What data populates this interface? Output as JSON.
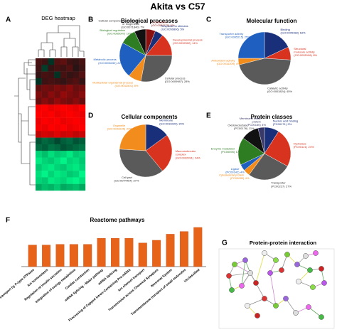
{
  "title": "Akita vs C57",
  "panels": [
    "A",
    "B",
    "C",
    "D",
    "E",
    "F",
    "G"
  ],
  "network": {
    "title": "Protein-protein interaction"
  },
  "chart_data": [
    {
      "type": "heatmap",
      "title": "DEG heatmap",
      "values": [
        [
          0.3,
          0.2,
          -0.1,
          0.4,
          0.5,
          0.2,
          0.1,
          0.3
        ],
        [
          0.2,
          -0.2,
          0.1,
          0.3,
          0.2,
          0.4,
          0.0,
          0.2
        ],
        [
          0.1,
          0.3,
          0.2,
          -0.1,
          0.3,
          0.1,
          0.2,
          0.4
        ],
        [
          -0.1,
          0.2,
          0.3,
          0.2,
          0.1,
          0.3,
          0.4,
          0.1
        ],
        [
          0.5,
          0.7,
          0.6,
          0.8,
          0.7,
          0.9,
          0.6,
          0.7
        ],
        [
          0.8,
          0.6,
          0.9,
          0.7,
          1.0,
          0.8,
          0.7,
          0.9
        ],
        [
          0.6,
          0.9,
          0.7,
          1.0,
          0.8,
          0.7,
          0.9,
          0.6
        ],
        [
          1.9,
          2.0,
          1.8,
          1.9,
          2.0,
          1.9,
          1.8,
          2.0
        ],
        [
          2.0,
          1.9,
          2.0,
          1.8,
          1.9,
          2.0,
          1.9,
          1.8
        ],
        [
          1.8,
          2.0,
          1.9,
          2.0,
          1.8,
          1.9,
          2.0,
          1.9
        ],
        [
          1.9,
          1.8,
          2.0,
          1.9,
          2.0,
          1.8,
          1.9,
          2.0
        ],
        [
          1.4,
          1.6,
          1.5,
          1.7,
          1.5,
          1.6,
          1.4,
          1.5
        ],
        [
          -0.4,
          -0.6,
          -0.5,
          -0.3,
          -0.5,
          -0.6,
          -0.4,
          -0.5
        ],
        [
          -0.6,
          -0.5,
          -0.7,
          -0.6,
          -0.4,
          -0.5,
          -0.6,
          -0.7
        ],
        [
          -1.6,
          -1.4,
          -1.7,
          -1.5,
          -1.6,
          -1.8,
          -1.5,
          -1.6
        ],
        [
          -1.8,
          -1.6,
          -1.5,
          -1.7,
          -1.9,
          -1.6,
          -1.7,
          -1.5
        ],
        [
          -1.5,
          -1.7,
          -1.8,
          -1.6,
          -1.5,
          -1.7,
          -1.8,
          -1.6
        ],
        [
          -1.7,
          -1.9,
          -1.6,
          -1.8,
          -1.7,
          -1.5,
          -1.6,
          -1.9
        ],
        [
          -1.6,
          -1.5,
          -1.8,
          -1.7,
          -1.6,
          -1.8,
          -1.9,
          -1.7
        ],
        [
          -1.2,
          -1.4,
          -1.3,
          -1.5,
          -1.2,
          -1.3,
          -1.4,
          -1.2
        ]
      ]
    },
    {
      "type": "pie",
      "title": "Biological processes",
      "labels": [
        [
          "Localization"
        ],
        [
          "Response to stimulus"
        ],
        [
          "Developmental process"
        ],
        [
          "Cellular process"
        ],
        [
          "Multicellular organismal process"
        ],
        [
          "Metabolic process"
        ],
        [
          "Biological regulation"
        ],
        [
          "Cellular component organization",
          "or biogenesis"
        ]
      ],
      "codes": [
        "(GO:0051179)",
        "(GO:0050896)",
        "(GO:0032502)",
        "(GO:0009987)",
        "(GO:0032501)",
        "(GO:0008152)",
        "(GO:0065007)",
        "(GO:0071840)"
      ],
      "values": [
        6,
        5,
        14,
        28,
        8,
        22,
        10,
        7
      ],
      "value_labels": [
        "6%",
        "5%",
        "14%",
        "28%",
        "8%",
        "22%",
        "10%",
        "7%"
      ],
      "colors": [
        "#8b1010",
        "#1a2f7a",
        "#d8331f",
        "#5a5a5a",
        "#f28c1c",
        "#1f5fbf",
        "#2e7d23",
        "#111111"
      ]
    },
    {
      "type": "pie",
      "title": "Molecular function",
      "labels": [
        [
          "Binding"
        ],
        [
          "Structural",
          "molecule activity"
        ],
        [
          "Catalytic activity"
        ],
        [
          "Antioxidant activity"
        ],
        [
          "Transporter activity"
        ]
      ],
      "codes": [
        "(GO:0005488)",
        "(GO:0005198)",
        "(GO:0003824)",
        "(GO:0016209)",
        "(GO:0005215)"
      ],
      "values": [
        18,
        8,
        45,
        4,
        25
      ],
      "value_labels": [
        "18%",
        "8%",
        "45%",
        "4%",
        "25%"
      ],
      "colors": [
        "#1a2f7a",
        "#d8331f",
        "#5a5a5a",
        "#f28c1c",
        "#1f5fbf"
      ]
    },
    {
      "type": "pie",
      "title": "Cellular components",
      "labels": [
        [
          "Membrane"
        ],
        [
          "Macromolecular",
          "complex"
        ],
        [
          "Cell part"
        ],
        [
          "Organelle"
        ]
      ],
      "codes": [
        "(GO:0016020)",
        "(GO:0032991)",
        "(GO:0044464)",
        "(GO:0043226)"
      ],
      "values": [
        15,
        24,
        37,
        24
      ],
      "value_labels": [
        "15%",
        "24%",
        "37%",
        "24%"
      ],
      "colors": [
        "#1a2f7a",
        "#d8331f",
        "#5a5a5a",
        "#f28c1c"
      ]
    },
    {
      "type": "pie",
      "title": "Protein classes",
      "labels": [
        [
          "Nucleic acid binding"
        ],
        [
          "Hydrolase"
        ],
        [
          "Transporter"
        ],
        [
          "Cytoskeletal protein"
        ],
        [
          "Ligase"
        ],
        [
          "Enzyme modulator"
        ],
        [
          "Oxidoreductase"
        ],
        [
          "Membrane traffic",
          "protein"
        ]
      ],
      "codes": [
        "(PC00171)",
        "(PC00121)",
        "(PC00227)",
        "(PC00085)",
        "(PC00142)",
        "(PC00095)",
        "(PC00176)",
        "(PC00150)"
      ],
      "values": [
        9,
        24,
        27,
        4,
        4,
        17,
        11,
        4
      ],
      "value_labels": [
        "9%",
        "24%",
        "27%",
        "4%",
        "4%",
        "17%",
        "11%",
        "4%"
      ],
      "colors": [
        "#1a2f7a",
        "#d8331f",
        "#5a5a5a",
        "#f28c1c",
        "#1f5fbf",
        "#2e7d23",
        "#111111",
        "#3a3a6a"
      ]
    },
    {
      "type": "bar",
      "title": "Reactome pathways",
      "color": "#e8631a",
      "categories": [
        "Ion transport by P-type ATPases",
        "Ion homeostasis",
        "Regulation of insulin secretion",
        "Integration of energy metabolism",
        "Cardiac conduction",
        "mRNA Splicing - Major pathway",
        "mRNA Splicing",
        "Processing of Capped Intron-Containing Pre-mRNA",
        "Ion channel transport",
        "Transmission across Chemical Synapses",
        "Neuronal System",
        "Transmembrane transport of small molecules",
        "Unclassified"
      ],
      "values": [
        3.2,
        3.2,
        3.3,
        3.3,
        3.3,
        4.2,
        4.2,
        4.2,
        3.5,
        3.9,
        4.8,
        5.2,
        5.8
      ],
      "ylim": [
        0,
        6
      ]
    }
  ]
}
